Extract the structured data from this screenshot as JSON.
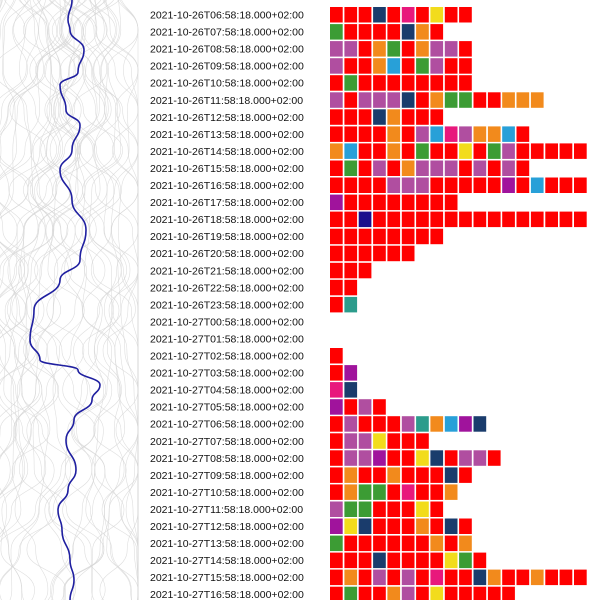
{
  "chart_data": {
    "type": "heatmap",
    "title": "",
    "xlabel": "",
    "ylabel": "",
    "line_color": "#1f1fa0",
    "background_line_color": "#d6d6d6",
    "palette": {
      "R": "#ff0000",
      "M": "#b04ea0",
      "O": "#f28a1c",
      "G": "#3c9c34",
      "N": "#1a3c6c",
      "Y": "#f2dc1c",
      "T": "#2c9c8c",
      "C": "#28a0d8",
      "P": "#e8187c",
      "V": "#a0139c",
      "I": "#1c0f8c"
    },
    "rows": [
      {
        "label": "2021-10-26T06:58:18.000+02:00",
        "cells": "RRRNRPRYRR"
      },
      {
        "label": "2021-10-26T07:58:18.000+02:00",
        "cells": "GRRRRNOR"
      },
      {
        "label": "2021-10-26T08:58:18.000+02:00",
        "cells": "MMROGROMMR"
      },
      {
        "label": "2021-10-26T09:58:18.000+02:00",
        "cells": "MRROCRGMRR"
      },
      {
        "label": "2021-10-26T10:58:18.000+02:00",
        "cells": "RGRRRRRRRR"
      },
      {
        "label": "2021-10-26T11:58:18.000+02:00",
        "cells": "MRMMMNROGGRROOO"
      },
      {
        "label": "2021-10-26T12:58:18.000+02:00",
        "cells": "RRRNORRR"
      },
      {
        "label": "2021-10-26T13:58:18.000+02:00",
        "cells": "RRRRORMCPMOOCR"
      },
      {
        "label": "2021-10-26T14:58:18.000+02:00",
        "cells": "OCRRORGRRYRGMRRRRR"
      },
      {
        "label": "2021-10-26T15:58:18.000+02:00",
        "cells": "RGRMROMMMRMRMR"
      },
      {
        "label": "2021-10-26T16:58:18.000+02:00",
        "cells": "RRRRMMMRRRRRVRCRRR"
      },
      {
        "label": "2021-10-26T17:58:18.000+02:00",
        "cells": "VRRRRRRRR"
      },
      {
        "label": "2021-10-26T18:58:18.000+02:00",
        "cells": "RRIRRRRRRRRRRRRRRRR"
      },
      {
        "label": "2021-10-26T19:58:18.000+02:00",
        "cells": "RRRRRRRR"
      },
      {
        "label": "2021-10-26T20:58:18.000+02:00",
        "cells": "RRRRRR"
      },
      {
        "label": "2021-10-26T21:58:18.000+02:00",
        "cells": "RRR"
      },
      {
        "label": "2021-10-26T22:58:18.000+02:00",
        "cells": "RR"
      },
      {
        "label": "2021-10-26T23:58:18.000+02:00",
        "cells": "RT"
      },
      {
        "label": "2021-10-27T00:58:18.000+02:00",
        "cells": ""
      },
      {
        "label": "2021-10-27T01:58:18.000+02:00",
        "cells": ""
      },
      {
        "label": "2021-10-27T02:58:18.000+02:00",
        "cells": "R"
      },
      {
        "label": "2021-10-27T03:58:18.000+02:00",
        "cells": "RV"
      },
      {
        "label": "2021-10-27T04:58:18.000+02:00",
        "cells": "PN"
      },
      {
        "label": "2021-10-27T05:58:18.000+02:00",
        "cells": "VRMR"
      },
      {
        "label": "2021-10-27T06:58:18.000+02:00",
        "cells": "RMRRRMTOCVN"
      },
      {
        "label": "2021-10-27T07:58:18.000+02:00",
        "cells": "RMMYRRR"
      },
      {
        "label": "2021-10-27T08:58:18.000+02:00",
        "cells": "RMMVRRYNRMMR"
      },
      {
        "label": "2021-10-27T09:58:18.000+02:00",
        "cells": "RORRORRRNR"
      },
      {
        "label": "2021-10-27T10:58:18.000+02:00",
        "cells": "ROGGRPRRO"
      },
      {
        "label": "2021-10-27T11:58:18.000+02:00",
        "cells": "MGGRRRYR"
      },
      {
        "label": "2021-10-27T12:58:18.000+02:00",
        "cells": "VYNRRRORNR"
      },
      {
        "label": "2021-10-27T13:58:18.000+02:00",
        "cells": "GRRRRRRORO"
      },
      {
        "label": "2021-10-27T14:58:18.000+02:00",
        "cells": "RRRNRRRRYGR"
      },
      {
        "label": "2021-10-27T15:58:18.000+02:00",
        "cells": "RORMRMRPRRNORRORRRR"
      },
      {
        "label": "2021-10-27T16:58:18.000+02:00",
        "cells": "RGRROMRYRRRRR"
      }
    ]
  }
}
